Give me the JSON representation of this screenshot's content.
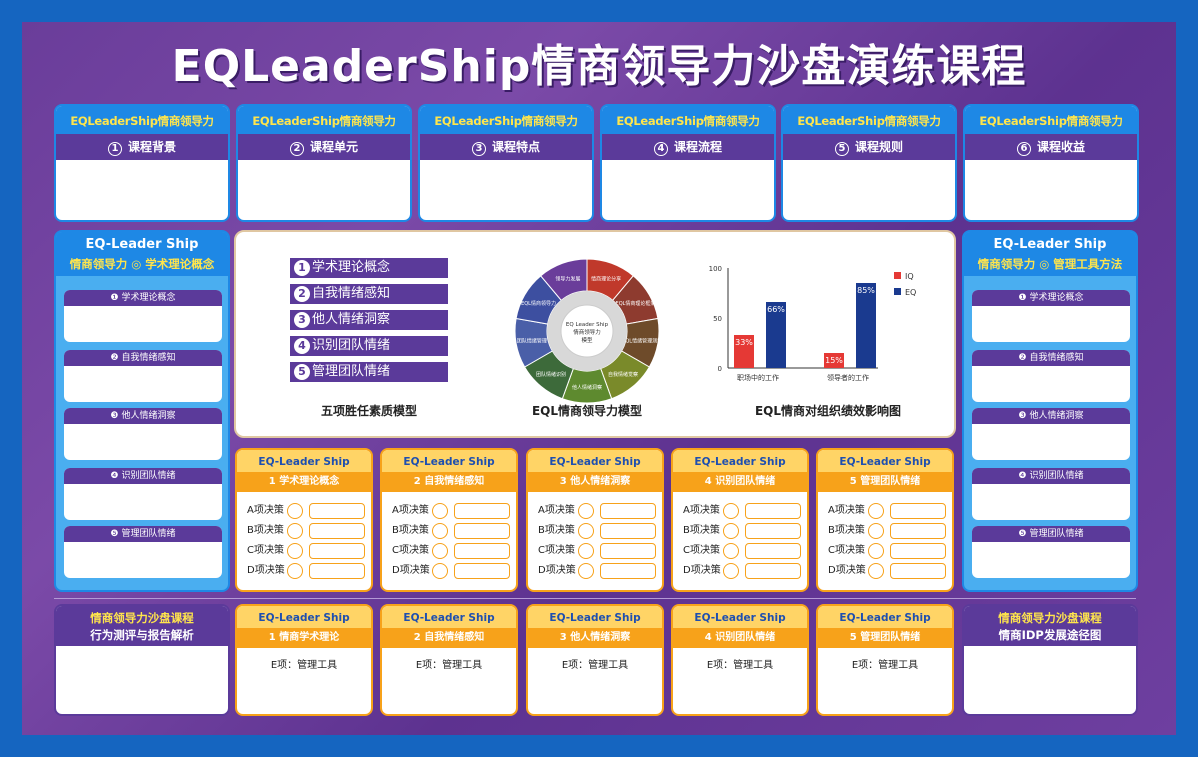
{
  "title": "EQLeaderShip情商领导力沙盘演练课程",
  "top_cards": [
    {
      "brand": "EQLeaderShip情商领导力",
      "num": "1",
      "label": "课程背景"
    },
    {
      "brand": "EQLeaderShip情商领导力",
      "num": "2",
      "label": "课程单元"
    },
    {
      "brand": "EQLeaderShip情商领导力",
      "num": "3",
      "label": "课程特点"
    },
    {
      "brand": "EQLeaderShip情商领导力",
      "num": "4",
      "label": "课程流程"
    },
    {
      "brand": "EQLeaderShip情商领导力",
      "num": "5",
      "label": "课程规则"
    },
    {
      "brand": "EQLeaderShip情商领导力",
      "num": "6",
      "label": "课程收益"
    }
  ],
  "left_panel": {
    "title": "EQ-Leader Ship",
    "subtitle": "情商领导力 ◎ 学术理论概念",
    "items": [
      "❶ 学术理论概念",
      "❷ 自我情绪感知",
      "❸ 他人情绪洞察",
      "❹ 识别团队情绪",
      "❺ 管理团队情绪"
    ]
  },
  "right_panel": {
    "title": "EQ-Leader Ship",
    "subtitle": "情商领导力 ◎ 管理工具方法",
    "items": [
      "❶ 学术理论概念",
      "❷ 自我情绪感知",
      "❸ 他人情绪洞察",
      "❹ 识别团队情绪",
      "❺ 管理团队情绪"
    ]
  },
  "center": {
    "five_items": [
      {
        "num": "1",
        "label": "学术理论概念"
      },
      {
        "num": "2",
        "label": "自我情绪感知"
      },
      {
        "num": "3",
        "label": "他人情绪洞察"
      },
      {
        "num": "4",
        "label": "识别团队情绪"
      },
      {
        "num": "5",
        "label": "管理团队情绪"
      }
    ],
    "caption_left": "五项胜任素质模型",
    "caption_mid": "EQL情商领导力模型",
    "caption_right": "EQL情商对组织绩效影响图",
    "wheel_center_line1": "EQ Leader Ship",
    "wheel_center_line2": "情商领导力",
    "wheel_center_line3": "模型"
  },
  "chart_data": {
    "type": "bar",
    "categories": [
      "职场中的工作",
      "领导者的工作"
    ],
    "series": [
      {
        "name": "IQ",
        "values": [
          33,
          15
        ],
        "color": "#e53935"
      },
      {
        "name": "EQ",
        "values": [
          66,
          85
        ],
        "color": "#1a3a8f"
      }
    ],
    "value_labels": [
      [
        "33%",
        "15%"
      ],
      [
        "66%",
        "85%"
      ]
    ],
    "ylim": [
      0,
      100
    ],
    "yticks": [
      "0",
      "50",
      "100"
    ],
    "legend": "top-right"
  },
  "decision_cards": [
    {
      "brand": "EQ-Leader Ship",
      "num": "1",
      "label": "学术理论概念"
    },
    {
      "brand": "EQ-Leader Ship",
      "num": "2",
      "label": "自我情绪感知"
    },
    {
      "brand": "EQ-Leader Ship",
      "num": "3",
      "label": "他人情绪洞察"
    },
    {
      "brand": "EQ-Leader Ship",
      "num": "4",
      "label": "识别团队情绪"
    },
    {
      "brand": "EQ-Leader Ship",
      "num": "5",
      "label": "管理团队情绪"
    }
  ],
  "decision_rows": [
    "A项决策",
    "B项决策",
    "C项决策",
    "D项决策"
  ],
  "bottom_cards": [
    {
      "brand": "EQ-Leader Ship",
      "num": "1",
      "label": "情商学术理论",
      "e": "E项：管理工具"
    },
    {
      "brand": "EQ-Leader Ship",
      "num": "2",
      "label": "自我情绪感知",
      "e": "E项：管理工具"
    },
    {
      "brand": "EQ-Leader Ship",
      "num": "3",
      "label": "他人情绪洞察",
      "e": "E项：管理工具"
    },
    {
      "brand": "EQ-Leader Ship",
      "num": "4",
      "label": "识别团队情绪",
      "e": "E项：管理工具"
    },
    {
      "brand": "EQ-Leader Ship",
      "num": "5",
      "label": "管理团队情绪",
      "e": "E项：管理工具"
    }
  ],
  "bottom_left": {
    "line1": "情商领导力沙盘课程",
    "line2": "行为测评与报告解析"
  },
  "bottom_right": {
    "line1": "情商领导力沙盘课程",
    "line2": "情商IDP发展途径图"
  },
  "wheel_segments": [
    "情商理论分享",
    "EQL情商理论框架",
    "EQL情绪管理测评",
    "自我情绪觉察",
    "他人情绪洞察",
    "团队情绪识别",
    "团队情绪管理",
    "EQL情商领导力",
    "领导力发展"
  ]
}
